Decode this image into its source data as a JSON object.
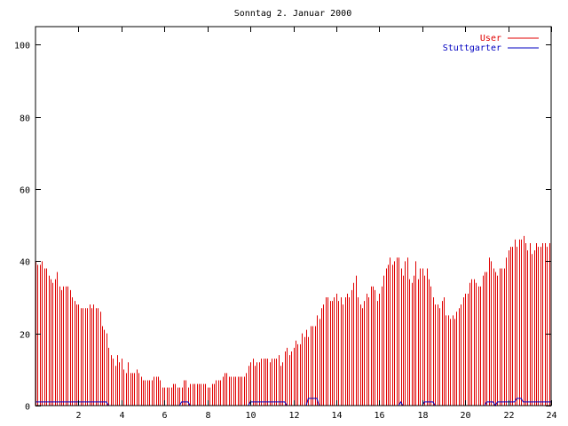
{
  "chart_data": {
    "type": "bar",
    "title": "Sonntag 2. Januar 2000",
    "xlabel": "",
    "ylabel": "",
    "xlim": [
      0,
      24
    ],
    "ylim": [
      0,
      105
    ],
    "x_ticks": [
      2,
      4,
      6,
      8,
      10,
      12,
      14,
      16,
      18,
      20,
      22,
      24
    ],
    "y_ticks": [
      0,
      20,
      40,
      60,
      80,
      100
    ],
    "grid": false,
    "legend_placement": "top-right",
    "colors": {
      "user": "#e00000",
      "stuttgarter": "#0000c0",
      "axis": "#000000"
    },
    "series": [
      {
        "name": "User",
        "type": "impulse",
        "points": [
          [
            0.0,
            40
          ],
          [
            0.1,
            39
          ],
          [
            0.2,
            39
          ],
          [
            0.3,
            40
          ],
          [
            0.4,
            38
          ],
          [
            0.5,
            38
          ],
          [
            0.6,
            36
          ],
          [
            0.7,
            35
          ],
          [
            0.8,
            34
          ],
          [
            0.9,
            35
          ],
          [
            1.0,
            37
          ],
          [
            1.1,
            33
          ],
          [
            1.2,
            32
          ],
          [
            1.3,
            33
          ],
          [
            1.4,
            33
          ],
          [
            1.5,
            33
          ],
          [
            1.6,
            32
          ],
          [
            1.7,
            30
          ],
          [
            1.8,
            29
          ],
          [
            1.9,
            28
          ],
          [
            2.0,
            28
          ],
          [
            2.1,
            27
          ],
          [
            2.2,
            27
          ],
          [
            2.3,
            27
          ],
          [
            2.4,
            27
          ],
          [
            2.5,
            28
          ],
          [
            2.6,
            27
          ],
          [
            2.7,
            28
          ],
          [
            2.8,
            27
          ],
          [
            2.9,
            27
          ],
          [
            3.0,
            26
          ],
          [
            3.1,
            22
          ],
          [
            3.2,
            21
          ],
          [
            3.3,
            20
          ],
          [
            3.4,
            16
          ],
          [
            3.5,
            14
          ],
          [
            3.6,
            13
          ],
          [
            3.7,
            11
          ],
          [
            3.8,
            14
          ],
          [
            3.9,
            12
          ],
          [
            4.0,
            13
          ],
          [
            4.1,
            10
          ],
          [
            4.2,
            9
          ],
          [
            4.3,
            12
          ],
          [
            4.4,
            9
          ],
          [
            4.5,
            9
          ],
          [
            4.6,
            9
          ],
          [
            4.7,
            10
          ],
          [
            4.8,
            9
          ],
          [
            4.9,
            8
          ],
          [
            5.0,
            7
          ],
          [
            5.1,
            7
          ],
          [
            5.2,
            7
          ],
          [
            5.3,
            7
          ],
          [
            5.4,
            7
          ],
          [
            5.5,
            8
          ],
          [
            5.6,
            8
          ],
          [
            5.7,
            8
          ],
          [
            5.8,
            7
          ],
          [
            5.9,
            5
          ],
          [
            6.0,
            5
          ],
          [
            6.1,
            5
          ],
          [
            6.2,
            5
          ],
          [
            6.3,
            5
          ],
          [
            6.4,
            6
          ],
          [
            6.5,
            6
          ],
          [
            6.6,
            5
          ],
          [
            6.7,
            5
          ],
          [
            6.8,
            5
          ],
          [
            6.9,
            7
          ],
          [
            7.0,
            7
          ],
          [
            7.1,
            5
          ],
          [
            7.2,
            6
          ],
          [
            7.3,
            6
          ],
          [
            7.4,
            6
          ],
          [
            7.5,
            6
          ],
          [
            7.6,
            6
          ],
          [
            7.7,
            6
          ],
          [
            7.8,
            6
          ],
          [
            7.9,
            6
          ],
          [
            8.0,
            5
          ],
          [
            8.1,
            5
          ],
          [
            8.2,
            6
          ],
          [
            8.3,
            6
          ],
          [
            8.4,
            7
          ],
          [
            8.5,
            7
          ],
          [
            8.6,
            7
          ],
          [
            8.7,
            8
          ],
          [
            8.8,
            9
          ],
          [
            8.9,
            9
          ],
          [
            9.0,
            8
          ],
          [
            9.1,
            8
          ],
          [
            9.2,
            8
          ],
          [
            9.3,
            8
          ],
          [
            9.4,
            8
          ],
          [
            9.5,
            8
          ],
          [
            9.6,
            8
          ],
          [
            9.7,
            8
          ],
          [
            9.8,
            9
          ],
          [
            9.9,
            11
          ],
          [
            10.0,
            12
          ],
          [
            10.1,
            13
          ],
          [
            10.2,
            11
          ],
          [
            10.3,
            12
          ],
          [
            10.4,
            12
          ],
          [
            10.5,
            13
          ],
          [
            10.6,
            13
          ],
          [
            10.7,
            13
          ],
          [
            10.8,
            13
          ],
          [
            10.9,
            12
          ],
          [
            11.0,
            13
          ],
          [
            11.1,
            13
          ],
          [
            11.2,
            13
          ],
          [
            11.3,
            14
          ],
          [
            11.4,
            11
          ],
          [
            11.5,
            12
          ],
          [
            11.6,
            15
          ],
          [
            11.7,
            16
          ],
          [
            11.8,
            14
          ],
          [
            11.9,
            15
          ],
          [
            12.0,
            16
          ],
          [
            12.1,
            18
          ],
          [
            12.2,
            17
          ],
          [
            12.3,
            17
          ],
          [
            12.4,
            20
          ],
          [
            12.5,
            19
          ],
          [
            12.6,
            21
          ],
          [
            12.7,
            19
          ],
          [
            12.8,
            22
          ],
          [
            12.9,
            22
          ],
          [
            13.0,
            22
          ],
          [
            13.1,
            25
          ],
          [
            13.2,
            24
          ],
          [
            13.3,
            27
          ],
          [
            13.4,
            28
          ],
          [
            13.5,
            30
          ],
          [
            13.6,
            30
          ],
          [
            13.7,
            29
          ],
          [
            13.8,
            29
          ],
          [
            13.9,
            30
          ],
          [
            14.0,
            31
          ],
          [
            14.1,
            29
          ],
          [
            14.2,
            30
          ],
          [
            14.3,
            28
          ],
          [
            14.4,
            30
          ],
          [
            14.5,
            31
          ],
          [
            14.6,
            30
          ],
          [
            14.7,
            32
          ],
          [
            14.8,
            34
          ],
          [
            14.9,
            36
          ],
          [
            15.0,
            30
          ],
          [
            15.1,
            28
          ],
          [
            15.2,
            27
          ],
          [
            15.3,
            29
          ],
          [
            15.4,
            31
          ],
          [
            15.5,
            30
          ],
          [
            15.6,
            33
          ],
          [
            15.7,
            33
          ],
          [
            15.8,
            32
          ],
          [
            15.9,
            29
          ],
          [
            16.0,
            31
          ],
          [
            16.1,
            33
          ],
          [
            16.2,
            36
          ],
          [
            16.3,
            38
          ],
          [
            16.4,
            39
          ],
          [
            16.5,
            41
          ],
          [
            16.6,
            39
          ],
          [
            16.7,
            40
          ],
          [
            16.8,
            41
          ],
          [
            16.9,
            41
          ],
          [
            17.0,
            38
          ],
          [
            17.1,
            36
          ],
          [
            17.2,
            40
          ],
          [
            17.3,
            41
          ],
          [
            17.4,
            35
          ],
          [
            17.5,
            34
          ],
          [
            17.6,
            36
          ],
          [
            17.7,
            40
          ],
          [
            17.8,
            35
          ],
          [
            17.9,
            38
          ],
          [
            18.0,
            38
          ],
          [
            18.1,
            36
          ],
          [
            18.2,
            38
          ],
          [
            18.3,
            35
          ],
          [
            18.4,
            33
          ],
          [
            18.5,
            30
          ],
          [
            18.6,
            28
          ],
          [
            18.7,
            28
          ],
          [
            18.8,
            27
          ],
          [
            18.9,
            29
          ],
          [
            19.0,
            30
          ],
          [
            19.1,
            25
          ],
          [
            19.2,
            25
          ],
          [
            19.3,
            24
          ],
          [
            19.4,
            25
          ],
          [
            19.5,
            24
          ],
          [
            19.6,
            26
          ],
          [
            19.7,
            27
          ],
          [
            19.8,
            28
          ],
          [
            19.9,
            30
          ],
          [
            20.0,
            31
          ],
          [
            20.1,
            31
          ],
          [
            20.2,
            34
          ],
          [
            20.3,
            35
          ],
          [
            20.4,
            35
          ],
          [
            20.5,
            34
          ],
          [
            20.6,
            33
          ],
          [
            20.7,
            33
          ],
          [
            20.8,
            36
          ],
          [
            20.9,
            37
          ],
          [
            21.0,
            37
          ],
          [
            21.1,
            41
          ],
          [
            21.2,
            40
          ],
          [
            21.3,
            38
          ],
          [
            21.4,
            37
          ],
          [
            21.5,
            36
          ],
          [
            21.6,
            38
          ],
          [
            21.7,
            38
          ],
          [
            21.8,
            38
          ],
          [
            21.9,
            41
          ],
          [
            22.0,
            43
          ],
          [
            22.1,
            44
          ],
          [
            22.2,
            44
          ],
          [
            22.3,
            46
          ],
          [
            22.4,
            44
          ],
          [
            22.5,
            46
          ],
          [
            22.6,
            46
          ],
          [
            22.7,
            47
          ],
          [
            22.8,
            45
          ],
          [
            22.9,
            43
          ],
          [
            23.0,
            45
          ],
          [
            23.1,
            42
          ],
          [
            23.2,
            43
          ],
          [
            23.3,
            45
          ],
          [
            23.4,
            44
          ],
          [
            23.5,
            44
          ],
          [
            23.6,
            45
          ],
          [
            23.7,
            45
          ],
          [
            23.8,
            44
          ],
          [
            23.9,
            45
          ]
        ]
      },
      {
        "name": "Stuttgarter",
        "type": "line",
        "points": [
          [
            0.0,
            1
          ],
          [
            1.0,
            1
          ],
          [
            2.0,
            1
          ],
          [
            3.0,
            1
          ],
          [
            3.3,
            1
          ],
          [
            3.4,
            0
          ],
          [
            6.7,
            0
          ],
          [
            6.8,
            1
          ],
          [
            7.1,
            1
          ],
          [
            7.2,
            0
          ],
          [
            9.9,
            0
          ],
          [
            10.0,
            1
          ],
          [
            11.6,
            1
          ],
          [
            11.7,
            0
          ],
          [
            12.6,
            0
          ],
          [
            12.7,
            2
          ],
          [
            13.1,
            2
          ],
          [
            13.2,
            0
          ],
          [
            16.9,
            0
          ],
          [
            17.0,
            1
          ],
          [
            17.1,
            0
          ],
          [
            18.0,
            0
          ],
          [
            18.1,
            1
          ],
          [
            18.5,
            1
          ],
          [
            18.6,
            0
          ],
          [
            20.9,
            0
          ],
          [
            21.0,
            1
          ],
          [
            21.3,
            1
          ],
          [
            21.4,
            0
          ],
          [
            21.5,
            1
          ],
          [
            22.3,
            1
          ],
          [
            22.4,
            2
          ],
          [
            22.6,
            2
          ],
          [
            22.7,
            1
          ],
          [
            23.9,
            1
          ],
          [
            24.0,
            1
          ]
        ]
      }
    ]
  }
}
